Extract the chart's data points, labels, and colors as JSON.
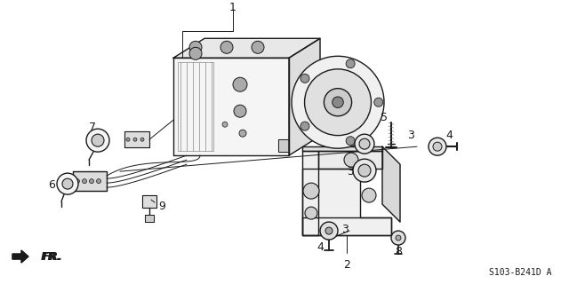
{
  "bg_color": "#ffffff",
  "lc": "#1a1a1a",
  "lc_light": "#555555",
  "fig_width": 6.4,
  "fig_height": 3.2,
  "dpi": 100,
  "footnote": "S103-B241D A",
  "fr_label": "FR."
}
